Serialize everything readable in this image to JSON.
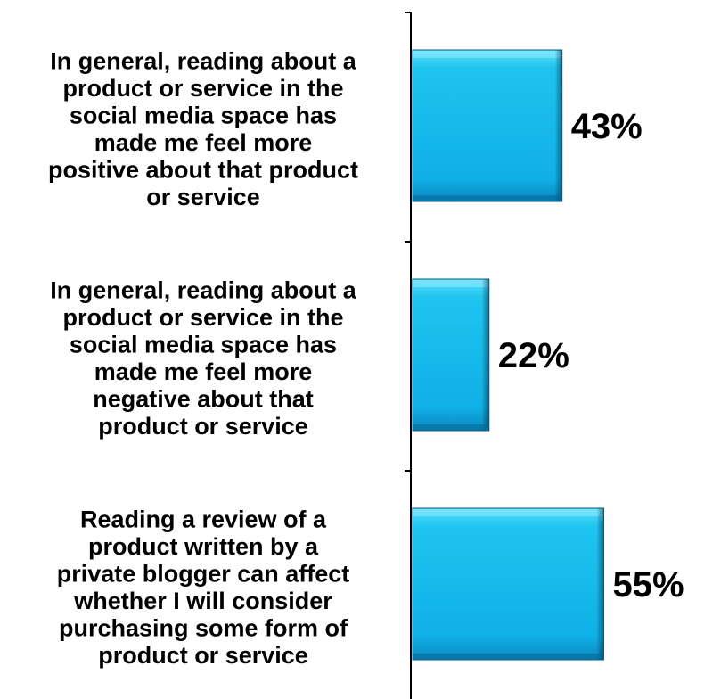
{
  "chart_data": {
    "type": "bar",
    "orientation": "horizontal",
    "categories": [
      "In general, reading about a product or service in the social media space has made me feel more positive about that product or service",
      "In general, reading about a product or service in the social media space has made me feel more negative about that product or service",
      "Reading a review of a product written by a private blogger can affect whether I will consider purchasing some form of product or service"
    ],
    "category_lines": [
      [
        "In general, reading about a",
        "product or service in the",
        "social media space has",
        "made me feel more",
        "positive about that product",
        "or service"
      ],
      [
        "In general, reading about a",
        "product or service in the",
        "social media space has",
        "made me feel more",
        "negative about that",
        "product or service"
      ],
      [
        "Reading a review of a",
        "product written by a",
        "private blogger can affect",
        "whether I will consider",
        "purchasing some form of",
        "product or service"
      ]
    ],
    "values": [
      43,
      22,
      55
    ],
    "value_labels": [
      "43%",
      "22%",
      "55%"
    ],
    "unit": "%",
    "title": "",
    "xlabel": "",
    "ylabel": "",
    "xlim": [
      0,
      100
    ],
    "grid": false,
    "legend": "none",
    "colors": {
      "bar_top": "#33d1f7",
      "bar_mid": "#19bdec",
      "bar_bottom": "#0a8fc6",
      "bar_edge": "#0a5f86",
      "axis": "#000000",
      "text": "#000000"
    }
  }
}
